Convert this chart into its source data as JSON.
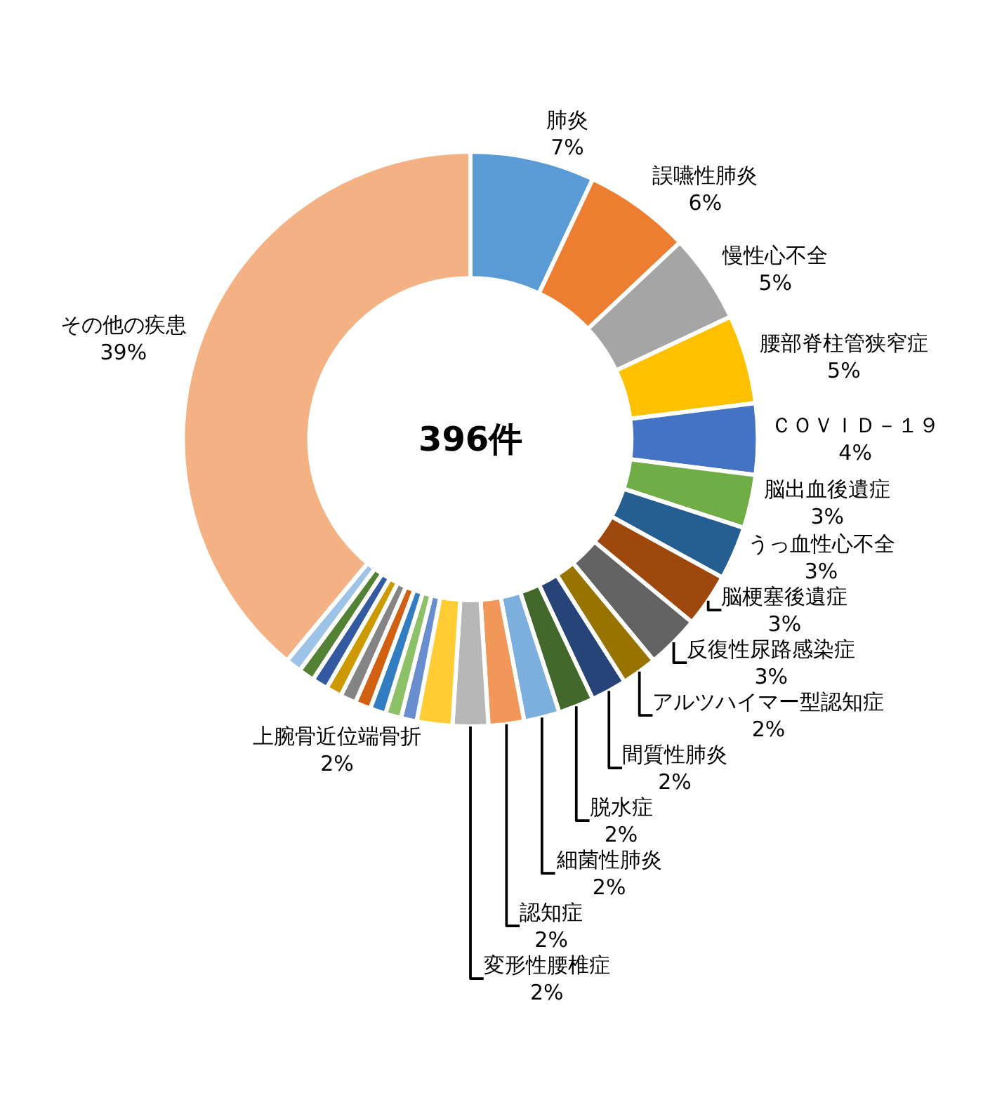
{
  "chart_data": {
    "type": "donut",
    "categories": [
      "肺炎",
      "誤嚥性肺炎",
      "慢性心不全",
      "腰部脊柱管狭窄症",
      "ＣＯＶＩＤ－１９",
      "脳出血後遺症",
      "うっ血性心不全",
      "脳梗塞後遺症",
      "反復性尿路感染症",
      "アルツハイマー型認知症",
      "間質性肺炎",
      "脱水症",
      "細菌性肺炎",
      "認知症",
      "変形性腰椎症",
      "上腕骨近位端骨折",
      null,
      null,
      null,
      null,
      null,
      null,
      null,
      null,
      null,
      "その他の疾患"
    ],
    "values": [
      7,
      6,
      5,
      5,
      4,
      3,
      3,
      3,
      3,
      2,
      2,
      2,
      2,
      2,
      2,
      2,
      0.89,
      0.89,
      0.89,
      0.89,
      0.89,
      0.89,
      0.89,
      0.89,
      0.89,
      39
    ],
    "value_labels": [
      "7%",
      "6%",
      "5%",
      "5%",
      "4%",
      "3%",
      "3%",
      "3%",
      "3%",
      "2%",
      "2%",
      "2%",
      "2%",
      "2%",
      "2%",
      "2%",
      null,
      null,
      null,
      null,
      null,
      null,
      null,
      null,
      null,
      "39%"
    ],
    "colors": [
      "#5b9bd5",
      "#ed7d31",
      "#a5a5a5",
      "#ffc000",
      "#4472c4",
      "#70ad47",
      "#255e91",
      "#9e480e",
      "#636363",
      "#997300",
      "#264478",
      "#43682b",
      "#7cafdd",
      "#f1975a",
      "#b7b7b7",
      "#ffcd33",
      "#698ed0",
      "#8cc168",
      "#327dc2",
      "#d26012",
      "#848484",
      "#cc9a00",
      "#335aa1",
      "#548235",
      "#9dc3e6",
      "#f4b183"
    ],
    "annotations": [
      "396件"
    ]
  }
}
